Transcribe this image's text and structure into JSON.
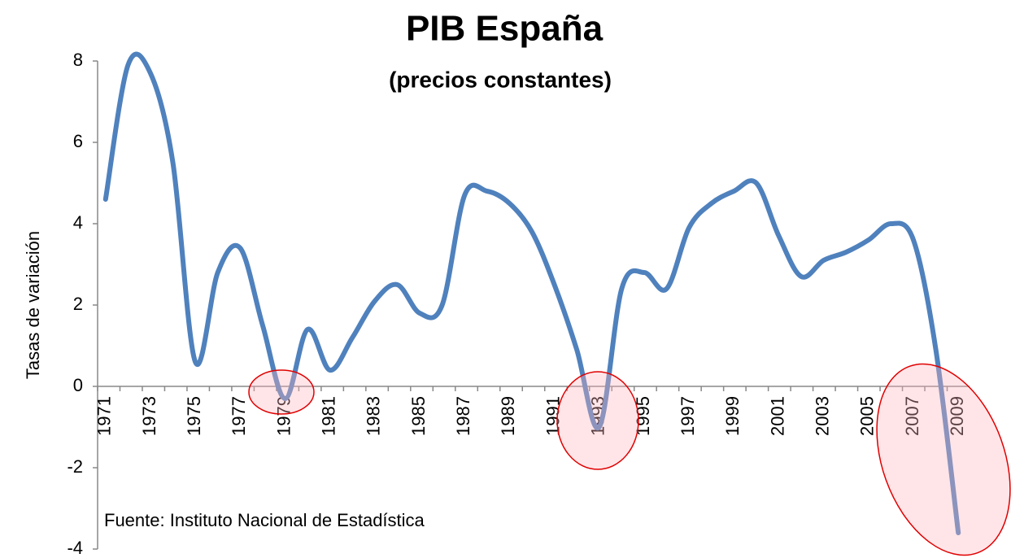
{
  "chart_data": {
    "type": "line",
    "title": "PIB España",
    "subtitle": "(precios constantes)",
    "y_label": "Tasas de variación",
    "annotation": "Fuente: Instituto  Nacional de Estadística",
    "categories": [
      "1971",
      null,
      "1973",
      null,
      "1975",
      null,
      "1977",
      null,
      "1979",
      null,
      "1981",
      null,
      "1983",
      null,
      "1985",
      null,
      "1987",
      null,
      "1989",
      null,
      "1991",
      null,
      "1993",
      null,
      "1995",
      null,
      "1997",
      null,
      "1999",
      null,
      "2001",
      null,
      "2003",
      null,
      "2005",
      null,
      "2007",
      null,
      "2009"
    ],
    "series": [
      {
        "name": "PIB",
        "color": "#4f81bd",
        "values": [
          4.6,
          7.9,
          7.7,
          5.5,
          0.6,
          2.8,
          3.4,
          1.5,
          -0.3,
          1.4,
          0.4,
          1.2,
          2.1,
          2.5,
          1.8,
          2.0,
          4.7,
          4.8,
          4.5,
          3.8,
          2.5,
          0.9,
          -1.0,
          2.4,
          2.8,
          2.4,
          3.9,
          4.5,
          4.8,
          5.0,
          3.7,
          2.7,
          3.1,
          3.3,
          3.6,
          4.0,
          3.6,
          0.9,
          -3.6
        ]
      }
    ],
    "ylim": [
      -4,
      8
    ],
    "yticks": [
      -4,
      -2,
      0,
      2,
      4,
      6,
      8
    ],
    "grid": false
  }
}
